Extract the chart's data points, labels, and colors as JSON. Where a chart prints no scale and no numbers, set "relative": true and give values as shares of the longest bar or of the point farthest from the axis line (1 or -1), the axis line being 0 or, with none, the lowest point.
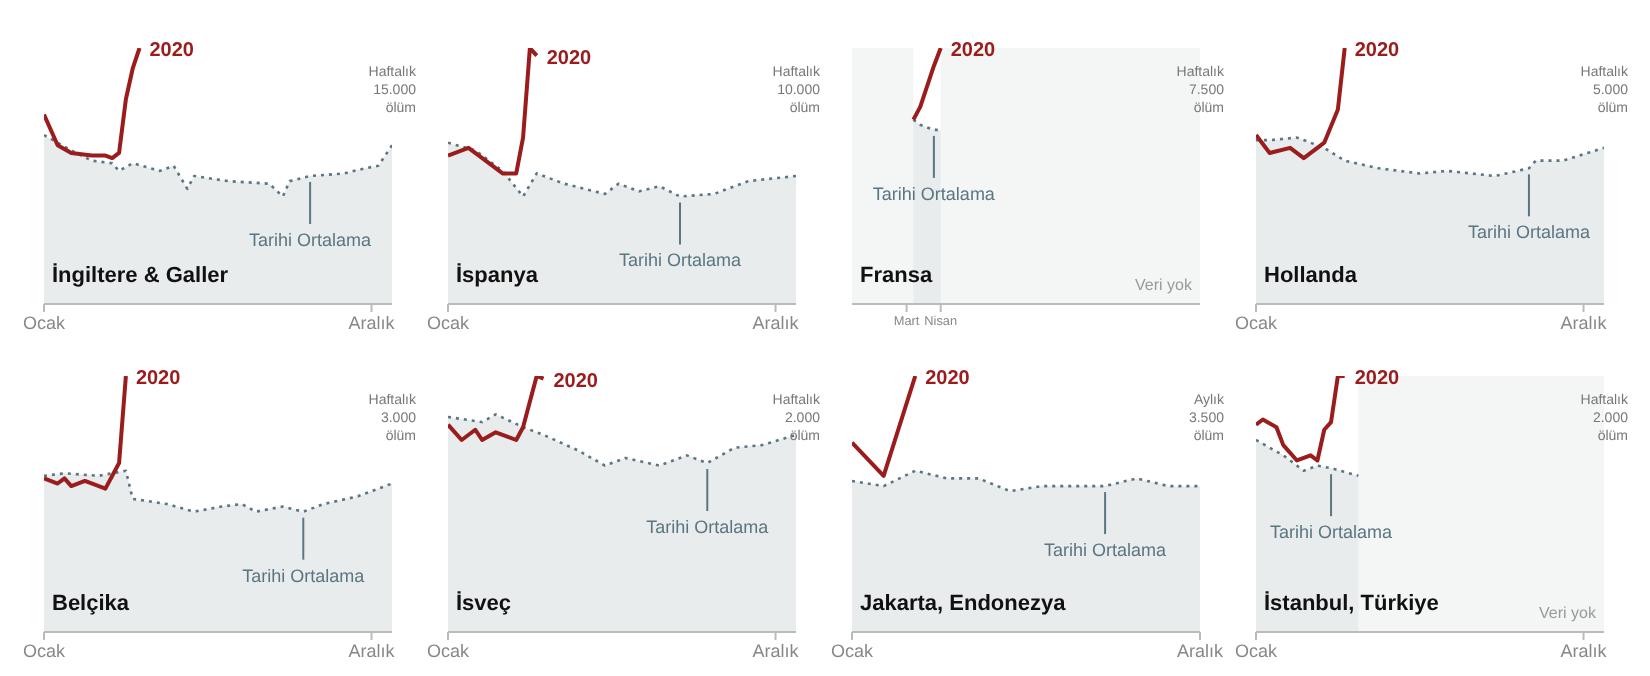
{
  "chart_data": [
    {
      "type": "line",
      "title": "İngiltere & Galler",
      "relative": true,
      "categories": [
        "Ocak",
        null,
        null,
        null,
        null,
        null,
        null,
        null,
        null,
        null,
        null,
        null,
        null,
        null,
        null,
        null,
        null,
        null,
        null,
        null,
        null,
        null,
        null,
        null,
        null,
        null,
        null,
        null,
        null,
        null,
        null,
        null,
        null,
        null,
        null,
        null,
        null,
        null,
        null,
        null,
        null,
        null,
        null,
        null,
        null,
        null,
        null,
        null,
        "Aralık",
        null,
        null,
        null
      ],
      "annotations": [
        "Haftalık 15.000 ölüm"
      ],
      "series": [
        {
          "name": "Tarihi Ortalama",
          "type": "area",
          "color": "#5b7583",
          "line_style": "dotted",
          "values": [
            0.66,
            null,
            null,
            null,
            0.6,
            null,
            null,
            0.56,
            null,
            null,
            0.55,
            0.52,
            null,
            0.55,
            null,
            null,
            null,
            0.52,
            null,
            0.54,
            null,
            0.45,
            0.5,
            null,
            null,
            null,
            null,
            0.48,
            null,
            null,
            null,
            null,
            null,
            0.47,
            null,
            0.42,
            0.48,
            null,
            null,
            0.5,
            null,
            null,
            null,
            null,
            0.51,
            null,
            null,
            0.53,
            null,
            0.54,
            null,
            0.62
          ]
        },
        {
          "name": "2020",
          "type": "line",
          "color": "#9b1c1c",
          "values": [
            0.74,
            null,
            0.62,
            null,
            0.59,
            null,
            null,
            0.58,
            null,
            0.58,
            0.57,
            0.59,
            0.8,
            0.92,
            1,
            null,
            null,
            null,
            null,
            null,
            null,
            null,
            null,
            null,
            null,
            null,
            null,
            null,
            null,
            null,
            null,
            null,
            null,
            null,
            null,
            null,
            null,
            null,
            null,
            null,
            null,
            null,
            null,
            null,
            null,
            null,
            null,
            null,
            null,
            null,
            null,
            null
          ]
        }
      ]
    },
    {
      "type": "line",
      "title": "İspanya",
      "relative": true,
      "categories": [
        "Ocak",
        null,
        null,
        null,
        null,
        null,
        null,
        null,
        null,
        null,
        null,
        null,
        null,
        null,
        null,
        null,
        null,
        null,
        null,
        null,
        null,
        null,
        null,
        null,
        null,
        null,
        null,
        null,
        null,
        null,
        null,
        null,
        null,
        null,
        null,
        null,
        null,
        null,
        null,
        null,
        null,
        null,
        null,
        null,
        null,
        null,
        null,
        null,
        "Aralık",
        null,
        null,
        null
      ],
      "annotations": [
        "Haftalık 10.000 ölüm"
      ],
      "series": [
        {
          "name": "Tarihi Ortalama",
          "type": "area",
          "color": "#5b7583",
          "line_style": "dotted",
          "values": [
            0.63,
            null,
            null,
            null,
            0.6,
            null,
            null,
            null,
            0.52,
            null,
            null,
            0.42,
            null,
            0.51,
            null,
            null,
            null,
            0.47,
            null,
            null,
            null,
            null,
            null,
            0.43,
            null,
            0.47,
            null,
            null,
            0.44,
            null,
            null,
            0.46,
            null,
            null,
            0.42,
            null,
            null,
            null,
            null,
            0.43,
            null,
            null,
            null,
            null,
            0.48,
            null,
            null,
            null,
            null,
            null,
            null,
            0.5
          ]
        },
        {
          "name": "2020",
          "type": "line",
          "color": "#9b1c1c",
          "values": [
            0.58,
            null,
            null,
            0.61,
            null,
            null,
            0.55,
            null,
            0.51,
            null,
            0.51,
            0.65,
            1,
            0.97,
            null,
            null,
            null,
            null,
            null,
            null,
            null,
            null,
            null,
            null,
            null,
            null,
            null,
            null,
            null,
            null,
            null,
            null,
            null,
            null,
            null,
            null,
            null,
            null,
            null,
            null,
            null,
            null,
            null,
            null,
            null,
            null,
            null,
            null,
            null,
            null,
            null,
            null
          ]
        }
      ]
    },
    {
      "type": "line",
      "title": "Fransa",
      "relative": true,
      "categories": [
        null,
        null,
        null,
        null,
        null,
        null,
        null,
        null,
        "Mart",
        null,
        null,
        null,
        null,
        "Nisan",
        null,
        null,
        null,
        null,
        null,
        null,
        null,
        null,
        null,
        null,
        null,
        null,
        null,
        null,
        null,
        null,
        null,
        null,
        null,
        null,
        null,
        null,
        null,
        null,
        null,
        null,
        null,
        null,
        null,
        null,
        null,
        null,
        null,
        null,
        null,
        null,
        null,
        null
      ],
      "annotations": [
        "Haftalık 7.500 ölüm",
        "Veri yok"
      ],
      "series": [
        {
          "name": "Tarihi Ortalama",
          "type": "area",
          "color": "#5b7583",
          "line_style": "dotted",
          "values": [
            null,
            null,
            null,
            null,
            null,
            null,
            null,
            null,
            null,
            0.72,
            0.7,
            0.69,
            0.68,
            0.68,
            null,
            null,
            null,
            null,
            null,
            null,
            null,
            null,
            null,
            null,
            null,
            null,
            null,
            null,
            null,
            null,
            null,
            null,
            null,
            null,
            null,
            null,
            null,
            null,
            null,
            null,
            null,
            null,
            null,
            null,
            null,
            null,
            null,
            null,
            null,
            null,
            null,
            null
          ]
        },
        {
          "name": "2020",
          "type": "line",
          "color": "#9b1c1c",
          "values": [
            null,
            null,
            null,
            null,
            null,
            null,
            null,
            null,
            null,
            0.72,
            0.77,
            0.85,
            0.93,
            1,
            null,
            null,
            null,
            null,
            null,
            null,
            null,
            null,
            null,
            null,
            null,
            null,
            null,
            null,
            null,
            null,
            null,
            null,
            null,
            null,
            null,
            null,
            null,
            null,
            null,
            null,
            null,
            null,
            null,
            null,
            null,
            null,
            null,
            null,
            null,
            null,
            null,
            null
          ]
        }
      ]
    },
    {
      "type": "line",
      "title": "Hollanda",
      "relative": true,
      "categories": [
        "Ocak",
        null,
        null,
        null,
        null,
        null,
        null,
        null,
        null,
        null,
        null,
        null,
        null,
        null,
        null,
        null,
        null,
        null,
        null,
        null,
        null,
        null,
        null,
        null,
        null,
        null,
        null,
        null,
        null,
        null,
        null,
        null,
        null,
        null,
        null,
        null,
        null,
        null,
        null,
        null,
        null,
        null,
        null,
        null,
        null,
        null,
        null,
        null,
        "Aralık",
        null,
        null,
        null
      ],
      "annotations": [
        "Haftalık 5.000 ölüm"
      ],
      "series": [
        {
          "name": "Tarihi Ortalama",
          "type": "area",
          "color": "#5b7583",
          "line_style": "dotted",
          "values": [
            0.64,
            null,
            0.64,
            null,
            null,
            null,
            0.65,
            null,
            null,
            null,
            0.61,
            null,
            null,
            0.56,
            null,
            null,
            null,
            null,
            0.53,
            null,
            null,
            null,
            null,
            null,
            0.51,
            null,
            null,
            null,
            0.52,
            null,
            null,
            null,
            null,
            null,
            null,
            0.5,
            null,
            null,
            null,
            null,
            0.53,
            0.56,
            null,
            null,
            null,
            0.56,
            null,
            null,
            null,
            null,
            null,
            0.61
          ]
        },
        {
          "name": "2020",
          "type": "line",
          "color": "#9b1c1c",
          "values": [
            0.66,
            null,
            0.59,
            null,
            null,
            0.61,
            null,
            0.57,
            null,
            0.61,
            0.63,
            null,
            0.76,
            1,
            null,
            null,
            null,
            null,
            null,
            null,
            null,
            null,
            null,
            null,
            null,
            null,
            null,
            null,
            null,
            null,
            null,
            null,
            null,
            null,
            null,
            null,
            null,
            null,
            null,
            null,
            null,
            null,
            null,
            null,
            null,
            null,
            null,
            null,
            null,
            null,
            null,
            null
          ]
        }
      ]
    },
    {
      "type": "line",
      "title": "Belçika",
      "relative": true,
      "categories": [
        "Ocak",
        null,
        null,
        null,
        null,
        null,
        null,
        null,
        null,
        null,
        null,
        null,
        null,
        null,
        null,
        null,
        null,
        null,
        null,
        null,
        null,
        null,
        null,
        null,
        null,
        null,
        null,
        null,
        null,
        null,
        null,
        null,
        null,
        null,
        null,
        null,
        null,
        null,
        null,
        null,
        null,
        null,
        null,
        null,
        null,
        null,
        null,
        null,
        "Aralık",
        null,
        null,
        null
      ],
      "annotations": [
        "Haftalık 3.000 ölüm"
      ],
      "series": [
        {
          "name": "Tarihi Ortalama",
          "type": "area",
          "color": "#5b7583",
          "line_style": "dotted",
          "values": [
            0.61,
            null,
            null,
            0.62,
            null,
            null,
            null,
            null,
            0.61,
            null,
            null,
            null,
            0.63,
            0.52,
            null,
            null,
            null,
            null,
            0.5,
            null,
            null,
            null,
            0.47,
            null,
            null,
            null,
            0.49,
            null,
            null,
            0.5,
            null,
            0.47,
            null,
            null,
            null,
            0.49,
            null,
            null,
            0.47,
            null,
            null,
            0.5,
            null,
            null,
            null,
            null,
            0.53,
            null,
            null,
            null,
            null,
            0.58
          ]
        },
        {
          "name": "2020",
          "type": "line",
          "color": "#9b1c1c",
          "values": [
            0.6,
            null,
            0.58,
            0.6,
            0.57,
            null,
            0.59,
            null,
            null,
            0.56,
            null,
            0.66,
            1,
            null,
            null,
            null,
            null,
            null,
            null,
            null,
            null,
            null,
            null,
            null,
            null,
            null,
            null,
            null,
            null,
            null,
            null,
            null,
            null,
            null,
            null,
            null,
            null,
            null,
            null,
            null,
            null,
            null,
            null,
            null,
            null,
            null,
            null,
            null,
            null,
            null,
            null,
            null
          ]
        }
      ]
    },
    {
      "type": "line",
      "title": "İsveç",
      "relative": true,
      "categories": [
        "Ocak",
        null,
        null,
        null,
        null,
        null,
        null,
        null,
        null,
        null,
        null,
        null,
        null,
        null,
        null,
        null,
        null,
        null,
        null,
        null,
        null,
        null,
        null,
        null,
        null,
        null,
        null,
        null,
        null,
        null,
        null,
        null,
        null,
        null,
        null,
        null,
        null,
        null,
        null,
        null,
        null,
        null,
        null,
        null,
        null,
        null,
        null,
        null,
        "Aralık",
        null,
        null,
        null
      ],
      "annotations": [
        "Haftalık 2.000 ölüm"
      ],
      "series": [
        {
          "name": "Tarihi Ortalama",
          "type": "area",
          "color": "#5b7583",
          "line_style": "dotted",
          "values": [
            0.84,
            null,
            null,
            null,
            null,
            0.82,
            null,
            0.85,
            null,
            null,
            null,
            0.8,
            null,
            null,
            0.77,
            null,
            null,
            null,
            null,
            0.71,
            null,
            null,
            null,
            0.65,
            null,
            null,
            0.68,
            null,
            null,
            null,
            null,
            0.65,
            null,
            null,
            null,
            0.69,
            null,
            null,
            0.66,
            null,
            null,
            null,
            0.72,
            null,
            null,
            null,
            0.73,
            null,
            null,
            null,
            null,
            0.77
          ]
        },
        {
          "name": "2020",
          "type": "line",
          "color": "#9b1c1c",
          "values": [
            0.81,
            null,
            0.75,
            null,
            0.79,
            0.75,
            null,
            0.78,
            0.77,
            null,
            0.75,
            0.8,
            null,
            1,
            0.99,
            null,
            null,
            null,
            null,
            null,
            null,
            null,
            null,
            null,
            null,
            null,
            null,
            null,
            null,
            null,
            null,
            null,
            null,
            null,
            null,
            null,
            null,
            null,
            null,
            null,
            null,
            null,
            null,
            null,
            null,
            null,
            null,
            null,
            null,
            null,
            null,
            null
          ]
        }
      ]
    },
    {
      "type": "line",
      "title": "Jakarta, Endonezya",
      "relative": true,
      "categories": [
        "Ocak",
        null,
        null,
        null,
        null,
        null,
        null,
        null,
        null,
        null,
        null,
        "Aralık"
      ],
      "annotations": [
        "Aylık 3.500 ölüm"
      ],
      "series": [
        {
          "name": "Tarihi Ortalama",
          "type": "area",
          "color": "#5b7583",
          "line_style": "dotted",
          "values": [
            0.59,
            0.57,
            0.63,
            0.6,
            0.6,
            0.55,
            0.57,
            0.57,
            0.57,
            0.6,
            0.57,
            0.57
          ]
        },
        {
          "name": "2020",
          "type": "line",
          "color": "#9b1c1c",
          "values": [
            0.74,
            0.61,
            1,
            null,
            null,
            null,
            null,
            null,
            null,
            null,
            null,
            null
          ]
        }
      ]
    },
    {
      "type": "line",
      "title": "İstanbul, Türkiye",
      "relative": true,
      "categories": [
        "Ocak",
        null,
        null,
        null,
        null,
        null,
        null,
        null,
        null,
        null,
        null,
        null,
        null,
        null,
        null,
        null,
        null,
        null,
        null,
        null,
        null,
        null,
        null,
        null,
        null,
        null,
        null,
        null,
        null,
        null,
        null,
        null,
        null,
        null,
        null,
        null,
        null,
        null,
        null,
        null,
        null,
        null,
        null,
        null,
        null,
        null,
        null,
        null,
        "Aralık",
        null,
        null,
        null
      ],
      "annotations": [
        "Haftalık 2.000 ölüm",
        "Veri yok"
      ],
      "series": [
        {
          "name": "Tarihi Ortalama",
          "type": "area",
          "color": "#5b7583",
          "line_style": "dotted",
          "values": [
            0.75,
            null,
            null,
            null,
            0.69,
            null,
            null,
            0.63,
            null,
            0.65,
            null,
            0.64,
            null,
            null,
            null,
            0.61,
            null,
            null,
            null,
            null,
            null,
            null,
            null,
            null,
            null,
            null,
            null,
            null,
            null,
            null,
            null,
            null,
            null,
            null,
            null,
            null,
            null,
            null,
            null,
            null,
            null,
            null,
            null,
            null,
            null,
            null,
            null,
            null,
            null,
            null,
            null,
            null
          ]
        },
        {
          "name": "2020",
          "type": "line",
          "color": "#9b1c1c",
          "values": [
            0.81,
            0.83,
            null,
            0.8,
            0.73,
            null,
            0.67,
            null,
            0.69,
            0.67,
            0.79,
            0.82,
            1,
            1,
            null,
            null,
            null,
            null,
            null,
            null,
            null,
            null,
            null,
            null,
            null,
            null,
            null,
            null,
            null,
            null,
            null,
            null,
            null,
            null,
            null,
            null,
            null,
            null,
            null,
            null,
            null,
            null,
            null,
            null,
            null,
            null,
            null,
            null,
            null,
            null,
            null,
            null
          ]
        }
      ]
    }
  ]
}
